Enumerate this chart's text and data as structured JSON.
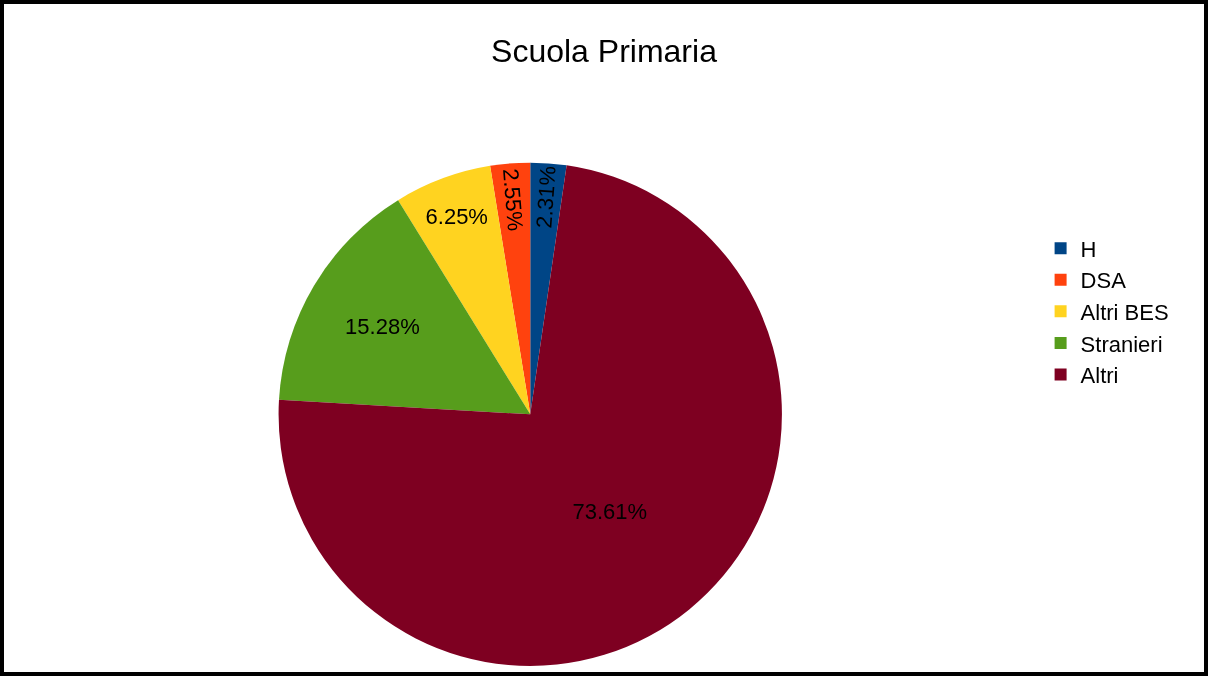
{
  "chart_data": {
    "type": "pie",
    "title": "Scuola Primaria",
    "categories": [
      "H",
      "DSA",
      "Altri BES",
      "Stranieri",
      "Altri"
    ],
    "values": [
      2.31,
      2.55,
      6.25,
      15.28,
      73.61
    ],
    "value_labels": [
      "2.31%",
      "2.55%",
      "6.25%",
      "15.28%",
      "73.61%"
    ],
    "colors": [
      "#004586",
      "#ff420e",
      "#ffd320",
      "#579d1c",
      "#7e0021"
    ],
    "legend": "right"
  }
}
